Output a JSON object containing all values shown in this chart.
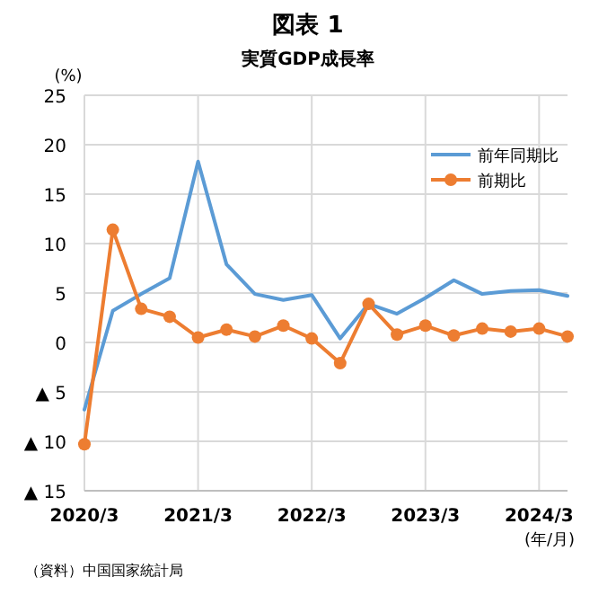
{
  "chart_data": {
    "type": "line",
    "title": "図表 1",
    "subtitle": "実質GDP成長率",
    "ylabel": "(%)",
    "xlabel": "(年/月)",
    "annotations": [
      "（資料）中国国家統計局"
    ],
    "categories": [
      "2020/3",
      null,
      null,
      null,
      "2021/3",
      null,
      null,
      null,
      "2022/3",
      null,
      null,
      null,
      "2023/3",
      null,
      null,
      null,
      "2024/3",
      null
    ],
    "series": [
      {
        "name": "前年同期比",
        "color": "#5b9bd5",
        "marker": "none",
        "values": [
          -6.8,
          3.2,
          4.9,
          6.5,
          18.3,
          7.9,
          4.9,
          4.3,
          4.8,
          0.4,
          3.9,
          2.9,
          4.5,
          6.3,
          4.9,
          5.2,
          5.3,
          4.7
        ]
      },
      {
        "name": "前期比",
        "color": "#ed7d31",
        "marker": "circle",
        "values": [
          -10.3,
          11.4,
          3.4,
          2.6,
          0.5,
          1.3,
          0.6,
          1.7,
          0.4,
          -2.1,
          3.9,
          0.8,
          1.7,
          0.7,
          1.4,
          1.1,
          1.4,
          0.6
        ]
      }
    ],
    "ylim": [
      -15,
      25
    ],
    "yticks": [
      {
        "value": -15,
        "label": "▲ 15"
      },
      {
        "value": -10,
        "label": "▲ 10"
      },
      {
        "value": -5,
        "label": "▲ 5"
      },
      0,
      5,
      10,
      15,
      20,
      25
    ],
    "grid": true,
    "legend": "top right"
  }
}
